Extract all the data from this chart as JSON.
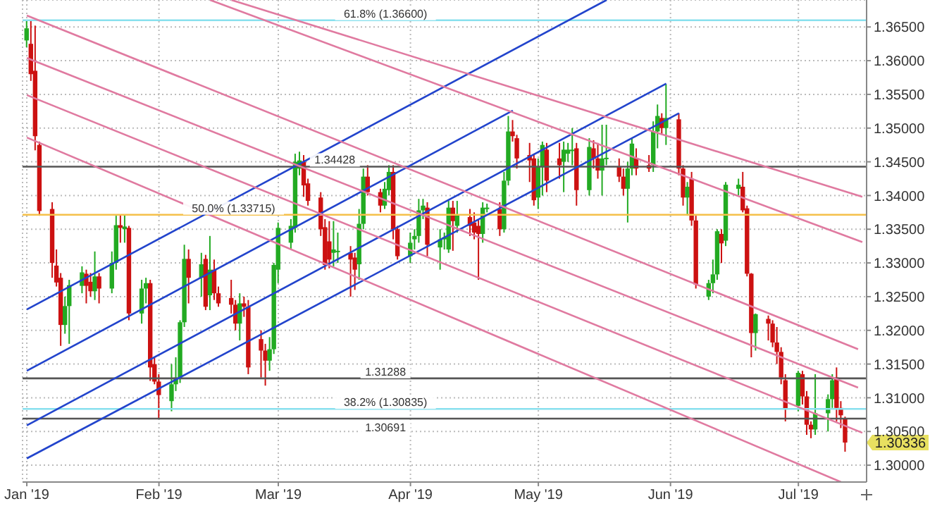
{
  "chart_data": {
    "type": "candlestick",
    "xlim": [
      "2018-12-31",
      "2019-07-17"
    ],
    "xticks": [
      {
        "value": "2019-01-01",
        "label": "Jan '19"
      },
      {
        "value": "2019-02-01",
        "label": "Feb '19"
      },
      {
        "value": "2019-03-01",
        "label": "Mar '19"
      },
      {
        "value": "2019-04-01",
        "label": "Apr '19"
      },
      {
        "value": "2019-05-01",
        "label": "May '19"
      },
      {
        "value": "2019-06-01",
        "label": "Jun '19"
      },
      {
        "value": "2019-07-01",
        "label": "Jul '19"
      }
    ],
    "ylim": [
      1.2975,
      1.369
    ],
    "yticks": [
      {
        "value": 1.3,
        "label": "1.30000"
      },
      {
        "value": 1.305,
        "label": "1.30500"
      },
      {
        "value": 1.31,
        "label": "1.31000"
      },
      {
        "value": 1.315,
        "label": "1.31500"
      },
      {
        "value": 1.32,
        "label": "1.32000"
      },
      {
        "value": 1.325,
        "label": "1.32500"
      },
      {
        "value": 1.33,
        "label": "1.33000"
      },
      {
        "value": 1.335,
        "label": "1.33500"
      },
      {
        "value": 1.34,
        "label": "1.34000"
      },
      {
        "value": 1.345,
        "label": "1.34500"
      },
      {
        "value": 1.35,
        "label": "1.35000"
      },
      {
        "value": 1.355,
        "label": "1.35500"
      },
      {
        "value": 1.36,
        "label": "1.36000"
      },
      {
        "value": 1.365,
        "label": "1.36500"
      }
    ],
    "grid": true,
    "series": [
      {
        "x": [
          "2019-01-01",
          "2019-01-02",
          "2019-01-03",
          "2019-01-04",
          "2019-01-07",
          "2019-01-08",
          "2019-01-09",
          "2019-01-10",
          "2019-01-11",
          "2019-01-14",
          "2019-01-15",
          "2019-01-16",
          "2019-01-17",
          "2019-01-18",
          "2019-01-21",
          "2019-01-22",
          "2019-01-23",
          "2019-01-24",
          "2019-01-25",
          "2019-01-28",
          "2019-01-29",
          "2019-01-30",
          "2019-01-31",
          "2019-02-01",
          "2019-02-04",
          "2019-02-05",
          "2019-02-06",
          "2019-02-07",
          "2019-02-08",
          "2019-02-11",
          "2019-02-12",
          "2019-02-13",
          "2019-02-14",
          "2019-02-15",
          "2019-02-18",
          "2019-02-19",
          "2019-02-20",
          "2019-02-21",
          "2019-02-22",
          "2019-02-25",
          "2019-02-26",
          "2019-02-27",
          "2019-02-28",
          "2019-03-01",
          "2019-03-04",
          "2019-03-05",
          "2019-03-06",
          "2019-03-07",
          "2019-03-08",
          "2019-03-11",
          "2019-03-12",
          "2019-03-13",
          "2019-03-14",
          "2019-03-15",
          "2019-03-18",
          "2019-03-19",
          "2019-03-20",
          "2019-03-21",
          "2019-03-22",
          "2019-03-25",
          "2019-03-26",
          "2019-03-27",
          "2019-03-28",
          "2019-03-29",
          "2019-04-01",
          "2019-04-02",
          "2019-04-03",
          "2019-04-04",
          "2019-04-05",
          "2019-04-08",
          "2019-04-09",
          "2019-04-10",
          "2019-04-11",
          "2019-04-12",
          "2019-04-15",
          "2019-04-16",
          "2019-04-17",
          "2019-04-18",
          "2019-04-19",
          "2019-04-22",
          "2019-04-23",
          "2019-04-24",
          "2019-04-25",
          "2019-04-26",
          "2019-04-29",
          "2019-04-30",
          "2019-05-01",
          "2019-05-02",
          "2019-05-03",
          "2019-05-06",
          "2019-05-07",
          "2019-05-08",
          "2019-05-09",
          "2019-05-10",
          "2019-05-13",
          "2019-05-14",
          "2019-05-15",
          "2019-05-16",
          "2019-05-17",
          "2019-05-20",
          "2019-05-21",
          "2019-05-22",
          "2019-05-23",
          "2019-05-24",
          "2019-05-27",
          "2019-05-28",
          "2019-05-29",
          "2019-05-30",
          "2019-05-31",
          "2019-06-03",
          "2019-06-04",
          "2019-06-05",
          "2019-06-06",
          "2019-06-07",
          "2019-06-10",
          "2019-06-11",
          "2019-06-12",
          "2019-06-13",
          "2019-06-14",
          "2019-06-17",
          "2019-06-18",
          "2019-06-19",
          "2019-06-20",
          "2019-06-21",
          "2019-06-24",
          "2019-06-25",
          "2019-06-26",
          "2019-06-27",
          "2019-06-28",
          "2019-07-01",
          "2019-07-02",
          "2019-07-03",
          "2019-07-04",
          "2019-07-05",
          "2019-07-08",
          "2019-07-09",
          "2019-07-10",
          "2019-07-11",
          "2019-07-12"
        ],
        "ohlc": [
          [
            1.363,
            1.366,
            1.362,
            1.3648
          ],
          [
            1.3625,
            1.366,
            1.357,
            1.358
          ],
          [
            1.3585,
            1.3652,
            1.3467,
            1.3488
          ],
          [
            1.3475,
            1.348,
            1.337,
            1.3377
          ],
          [
            1.338,
            1.339,
            1.3278,
            1.33
          ],
          [
            1.3296,
            1.332,
            1.3265,
            1.3271
          ],
          [
            1.3278,
            1.3285,
            1.3177,
            1.3208
          ],
          [
            1.3208,
            1.325,
            1.3195,
            1.3236
          ],
          [
            1.3236,
            1.3275,
            1.318,
            1.3267
          ],
          [
            1.3266,
            1.3295,
            1.3255,
            1.3286
          ],
          [
            1.3284,
            1.329,
            1.324,
            1.3266
          ],
          [
            1.3272,
            1.3285,
            1.325,
            1.3258
          ],
          [
            1.3258,
            1.3317,
            1.3245,
            1.328
          ],
          [
            1.328,
            1.3285,
            1.324,
            1.3262
          ],
          [
            1.3262,
            1.3317,
            1.3255,
            1.33
          ],
          [
            1.33,
            1.337,
            1.329,
            1.3356
          ],
          [
            1.3356,
            1.3372,
            1.333,
            1.3352
          ],
          [
            1.335,
            1.3372,
            1.333,
            1.3354
          ],
          [
            1.3352,
            1.3355,
            1.3215,
            1.3225
          ],
          [
            1.3225,
            1.3275,
            1.321,
            1.3262
          ],
          [
            1.3262,
            1.3278,
            1.324,
            1.327
          ],
          [
            1.327,
            1.3275,
            1.3125,
            1.3145
          ],
          [
            1.315,
            1.316,
            1.312,
            1.3124
          ],
          [
            1.3124,
            1.3135,
            1.3068,
            1.3104
          ],
          [
            1.3095,
            1.315,
            1.308,
            1.312
          ],
          [
            1.312,
            1.316,
            1.311,
            1.313
          ],
          [
            1.313,
            1.3215,
            1.3122,
            1.3212
          ],
          [
            1.3212,
            1.3327,
            1.3205,
            1.3306
          ],
          [
            1.3306,
            1.332,
            1.324,
            1.3278
          ],
          [
            1.3278,
            1.3315,
            1.325,
            1.3298
          ],
          [
            1.3306,
            1.3312,
            1.323,
            1.3235
          ],
          [
            1.3252,
            1.334,
            1.323,
            1.329
          ],
          [
            1.329,
            1.3305,
            1.3245,
            1.3255
          ],
          [
            1.3255,
            1.3265,
            1.3235,
            1.324
          ],
          [
            1.3248,
            1.3275,
            1.3225,
            1.3238
          ],
          [
            1.3238,
            1.3245,
            1.32,
            1.321
          ],
          [
            1.321,
            1.3255,
            1.3185,
            1.324
          ],
          [
            1.324,
            1.325,
            1.322,
            1.3235
          ],
          [
            1.3235,
            1.3245,
            1.3135,
            1.3145
          ],
          [
            1.3187,
            1.32,
            1.313,
            1.317
          ],
          [
            1.317,
            1.318,
            1.3118,
            1.3155
          ],
          [
            1.3155,
            1.319,
            1.314,
            1.3172
          ],
          [
            1.3172,
            1.33,
            1.3165,
            1.3297
          ],
          [
            1.329,
            1.336,
            1.327,
            1.3352
          ],
          [
            1.333,
            1.3365,
            1.332,
            1.3355
          ],
          [
            1.3352,
            1.3462,
            1.3345,
            1.345
          ],
          [
            1.344,
            1.3465,
            1.343,
            1.3452
          ],
          [
            1.345,
            1.346,
            1.3398,
            1.3415
          ],
          [
            1.3418,
            1.3425,
            1.3385,
            1.3392
          ],
          [
            1.3397,
            1.3405,
            1.334,
            1.335
          ],
          [
            1.3353,
            1.3365,
            1.329,
            1.3297
          ],
          [
            1.3332,
            1.3362,
            1.3292,
            1.3305
          ],
          [
            1.3315,
            1.3362,
            1.3295,
            1.332
          ],
          [
            1.3318,
            1.3345,
            1.33,
            1.3318
          ],
          [
            1.3315,
            1.3325,
            1.325,
            1.3305
          ],
          [
            1.3308,
            1.3315,
            1.326,
            1.329
          ],
          [
            1.3298,
            1.338,
            1.3275,
            1.3358
          ],
          [
            1.3358,
            1.344,
            1.335,
            1.3428
          ],
          [
            1.3428,
            1.3445,
            1.34,
            1.3405
          ],
          [
            1.3405,
            1.341,
            1.3375,
            1.3385
          ],
          [
            1.3385,
            1.342,
            1.338,
            1.341
          ],
          [
            1.3408,
            1.3445,
            1.34,
            1.3435
          ],
          [
            1.3435,
            1.3445,
            1.3335,
            1.335
          ],
          [
            1.335,
            1.3355,
            1.3305,
            1.331
          ],
          [
            1.331,
            1.3345,
            1.33,
            1.333
          ],
          [
            1.3335,
            1.335,
            1.332,
            1.334
          ],
          [
            1.334,
            1.3395,
            1.333,
            1.3378
          ],
          [
            1.3378,
            1.3395,
            1.3365,
            1.3385
          ],
          [
            1.3382,
            1.339,
            1.331,
            1.3327
          ],
          [
            1.3323,
            1.335,
            1.329,
            1.3335
          ],
          [
            1.3335,
            1.3345,
            1.332,
            1.3338
          ],
          [
            1.332,
            1.3392,
            1.3315,
            1.3382
          ],
          [
            1.3382,
            1.3392,
            1.3318,
            1.3362
          ],
          [
            1.3355,
            1.3392,
            1.3345,
            1.3372
          ],
          [
            1.3368,
            1.338,
            1.334,
            1.3355
          ],
          [
            1.336,
            1.3375,
            1.3335,
            1.3345
          ],
          [
            1.3355,
            1.3365,
            1.3275,
            1.3343
          ],
          [
            1.3343,
            1.339,
            1.333,
            1.3382
          ],
          [
            1.338,
            1.3388,
            1.3375,
            1.3382
          ],
          [
            1.338,
            1.339,
            1.334,
            1.335
          ],
          [
            1.335,
            1.3435,
            1.3345,
            1.3422
          ],
          [
            1.3422,
            1.3518,
            1.3415,
            1.3495
          ],
          [
            1.3495,
            1.3512,
            1.348,
            1.3488
          ],
          [
            1.3485,
            1.349,
            1.344,
            1.3455
          ],
          [
            1.346,
            1.3478,
            1.342,
            1.3452
          ],
          [
            1.3455,
            1.3462,
            1.3385,
            1.3393
          ],
          [
            1.3397,
            1.3455,
            1.338,
            1.3443
          ],
          [
            1.3443,
            1.348,
            1.34,
            1.3475
          ],
          [
            1.3468,
            1.3478,
            1.3405,
            1.3422
          ],
          [
            1.3455,
            1.3478,
            1.3425,
            1.3445
          ],
          [
            1.345,
            1.348,
            1.3405,
            1.3468
          ],
          [
            1.3462,
            1.3478,
            1.345,
            1.3468
          ],
          [
            1.3467,
            1.35,
            1.3445,
            1.3468
          ],
          [
            1.347,
            1.3478,
            1.3385,
            1.3408
          ],
          [
            1.3408,
            1.3485,
            1.34,
            1.3472
          ],
          [
            1.347,
            1.3482,
            1.344,
            1.3455
          ],
          [
            1.3455,
            1.3478,
            1.3425,
            1.3437
          ],
          [
            1.3437,
            1.3505,
            1.34,
            1.3455
          ],
          [
            1.3455,
            1.3505,
            1.3445,
            1.3456
          ],
          [
            1.3443,
            1.3455,
            1.342,
            1.3428
          ],
          [
            1.3428,
            1.344,
            1.34,
            1.341
          ],
          [
            1.341,
            1.345,
            1.336,
            1.344
          ],
          [
            1.344,
            1.3485,
            1.343,
            1.3477
          ],
          [
            1.3455,
            1.347,
            1.343,
            1.344
          ],
          [
            1.3445,
            1.346,
            1.3435,
            1.344
          ],
          [
            1.3445,
            1.351,
            1.3435,
            1.3495
          ],
          [
            1.3495,
            1.3535,
            1.347,
            1.3518
          ],
          [
            1.3515,
            1.3522,
            1.349,
            1.35
          ],
          [
            1.35,
            1.3565,
            1.3475,
            1.3515
          ],
          [
            1.3513,
            1.3522,
            1.343,
            1.344
          ],
          [
            1.344,
            1.3445,
            1.3385,
            1.3397
          ],
          [
            1.3397,
            1.342,
            1.337,
            1.3413
          ],
          [
            1.3425,
            1.3435,
            1.3355,
            1.3363
          ],
          [
            1.3363,
            1.337,
            1.3262,
            1.3268
          ],
          [
            1.325,
            1.3275,
            1.3245,
            1.327
          ],
          [
            1.327,
            1.3305,
            1.3255,
            1.3283
          ],
          [
            1.3283,
            1.335,
            1.3275,
            1.3347
          ],
          [
            1.3343,
            1.335,
            1.33,
            1.3329
          ],
          [
            1.3333,
            1.342,
            1.3325,
            1.3416
          ],
          [
            1.341,
            1.3425,
            1.34,
            1.3416
          ],
          [
            1.3413,
            1.3435,
            1.3375,
            1.3378
          ],
          [
            1.3381,
            1.3385,
            1.328,
            1.3284
          ],
          [
            1.3284,
            1.3285,
            1.316,
            1.3196
          ],
          [
            1.3196,
            1.3225,
            1.317,
            1.3224
          ],
          [
            1.3217,
            1.3222,
            1.3185,
            1.321
          ],
          [
            1.321,
            1.3215,
            1.3175,
            1.3182
          ],
          [
            1.3182,
            1.3205,
            1.315,
            1.3168
          ],
          [
            1.3168,
            1.3175,
            1.312,
            1.313
          ],
          [
            1.3126,
            1.3135,
            1.3065,
            1.3084
          ],
          [
            1.3088,
            1.314,
            1.308,
            1.3137
          ],
          [
            1.3135,
            1.314,
            1.309,
            1.3102
          ],
          [
            1.3102,
            1.311,
            1.3045,
            1.306
          ],
          [
            1.306,
            1.3065,
            1.304,
            1.3053
          ],
          [
            1.3053,
            1.3135,
            1.3045,
            1.3077
          ],
          [
            1.3077,
            1.3105,
            1.305,
            1.3098
          ],
          [
            1.3098,
            1.3135,
            1.3085,
            1.3126
          ],
          [
            1.313,
            1.3145,
            1.3065,
            1.3085
          ],
          [
            1.3085,
            1.3095,
            1.3055,
            1.3074
          ],
          [
            1.307,
            1.3072,
            1.302,
            1.30336
          ]
        ],
        "colors": [
          "#22aa22",
          "#cc1111",
          "#cc1111",
          "#cc1111",
          "#cc1111",
          "#cc1111",
          "#cc1111",
          "#22aa22",
          "#22aa22",
          "#22aa22",
          "#cc1111",
          "#cc1111",
          "#22aa22",
          "#cc1111",
          "#22aa22",
          "#22aa22",
          "#cc1111",
          "#22aa22",
          "#cc1111",
          "#22aa22",
          "#22aa22",
          "#cc1111",
          "#cc1111",
          "#cc1111",
          "#22aa22",
          "#22aa22",
          "#22aa22",
          "#22aa22",
          "#cc1111",
          "#22aa22",
          "#cc1111",
          "#22aa22",
          "#cc1111",
          "#cc1111",
          "#cc1111",
          "#cc1111",
          "#22aa22",
          "#cc1111",
          "#cc1111",
          "#cc1111",
          "#cc1111",
          "#22aa22",
          "#22aa22",
          "#22aa22",
          "#22aa22",
          "#22aa22",
          "#22aa22",
          "#cc1111",
          "#cc1111",
          "#cc1111",
          "#cc1111",
          "#cc1111",
          "#22aa22",
          "#22aa22",
          "#cc1111",
          "#cc1111",
          "#22aa22",
          "#22aa22",
          "#cc1111",
          "#cc1111",
          "#22aa22",
          "#22aa22",
          "#cc1111",
          "#cc1111",
          "#22aa22",
          "#22aa22",
          "#22aa22",
          "#22aa22",
          "#cc1111",
          "#22aa22",
          "#22aa22",
          "#22aa22",
          "#cc1111",
          "#22aa22",
          "#cc1111",
          "#cc1111",
          "#cc1111",
          "#22aa22",
          "#22aa22",
          "#cc1111",
          "#22aa22",
          "#22aa22",
          "#cc1111",
          "#cc1111",
          "#cc1111",
          "#cc1111",
          "#22aa22",
          "#22aa22",
          "#cc1111",
          "#cc1111",
          "#22aa22",
          "#22aa22",
          "#22aa22",
          "#cc1111",
          "#22aa22",
          "#cc1111",
          "#cc1111",
          "#22aa22",
          "#22aa22",
          "#cc1111",
          "#cc1111",
          "#22aa22",
          "#22aa22",
          "#cc1111",
          "#cc1111",
          "#22aa22",
          "#22aa22",
          "#cc1111",
          "#22aa22",
          "#cc1111",
          "#cc1111",
          "#22aa22",
          "#cc1111",
          "#cc1111",
          "#22aa22",
          "#22aa22",
          "#22aa22",
          "#cc1111",
          "#22aa22",
          "#22aa22",
          "#cc1111",
          "#cc1111",
          "#cc1111",
          "#22aa22",
          "#cc1111",
          "#cc1111",
          "#cc1111",
          "#cc1111",
          "#cc1111",
          "#22aa22",
          "#cc1111",
          "#cc1111",
          "#cc1111",
          "#22aa22",
          "#22aa22",
          "#22aa22",
          "#cc1111",
          "#cc1111",
          "#cc1111"
        ]
      },
      {
        "type": "line",
        "color": "#2244cc",
        "x": [
          "2019-01-01",
          "2019-05-17"
        ],
        "values": [
          1.3231,
          1.369
        ]
      },
      {
        "type": "line",
        "color": "#2244cc",
        "x": [
          "2019-01-01",
          "2019-04-25"
        ],
        "values": [
          1.314,
          1.3526
        ]
      },
      {
        "type": "line",
        "color": "#2244cc",
        "x": [
          "2019-01-01",
          "2019-05-31"
        ],
        "values": [
          1.3059,
          1.3566
        ]
      },
      {
        "type": "line",
        "color": "#2244cc",
        "x": [
          "2019-01-01",
          "2019-06-03"
        ],
        "values": [
          1.301,
          1.3522
        ]
      },
      {
        "type": "line",
        "color": "#e07aa0",
        "x": [
          "2019-02-18",
          "2019-07-16"
        ],
        "values": [
          1.369,
          1.3398
        ]
      },
      {
        "type": "line",
        "color": "#e07aa0",
        "x": [
          "2019-02-13",
          "2019-07-16"
        ],
        "values": [
          1.369,
          1.3331
        ]
      },
      {
        "type": "line",
        "color": "#e07aa0",
        "x": [
          "2019-01-01",
          "2019-07-15"
        ],
        "values": [
          1.3667,
          1.3172
        ]
      },
      {
        "type": "line",
        "color": "#e07aa0",
        "x": [
          "2019-01-01",
          "2019-07-15"
        ],
        "values": [
          1.3604,
          1.3115
        ]
      },
      {
        "type": "line",
        "color": "#e07aa0",
        "x": [
          "2019-01-01",
          "2019-07-16"
        ],
        "values": [
          1.3549,
          1.3048
        ]
      },
      {
        "type": "line",
        "color": "#e07aa0",
        "x": [
          "2019-01-01",
          "2019-07-11"
        ],
        "values": [
          1.3486,
          1.2975
        ]
      }
    ],
    "ref_lines": [
      {
        "axis": "y",
        "value": 1.366,
        "label": "61.8% (1.36600)",
        "color": "#88e0ee"
      },
      {
        "axis": "y",
        "value": 1.34428,
        "label": "1.34428",
        "color": "#555555"
      },
      {
        "axis": "y",
        "value": 1.33715,
        "label": "50.0% (1.33715)",
        "color": "#f5c04a"
      },
      {
        "axis": "y",
        "value": 1.31288,
        "label": "1.31288",
        "color": "#555555"
      },
      {
        "axis": "y",
        "value": 1.30835,
        "label": "38.2% (1.30835)",
        "color": "#88e0ee"
      },
      {
        "axis": "y",
        "value": 1.30691,
        "label": "1.30691",
        "color": "#555555"
      }
    ],
    "annotations": [
      "1.30336"
    ]
  }
}
